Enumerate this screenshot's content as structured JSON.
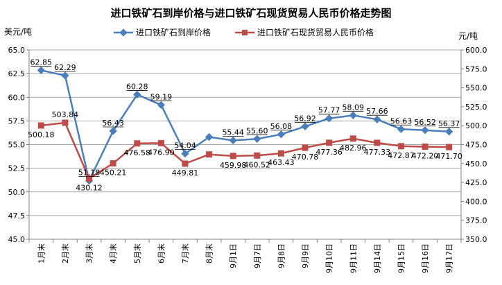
{
  "chart_data": {
    "type": "line",
    "title": "进口铁矿石到岸价格与进口铁矿石现货贸易人民币价格走势图",
    "left_unit": "美元/吨",
    "right_unit": "元/吨",
    "categories": [
      "1月末",
      "2月末",
      "3月末",
      "4月末",
      "5月末",
      "6月末",
      "7月末",
      "8月末",
      "9月1日",
      "9月7日",
      "9月8日",
      "9月9日",
      "9月10日",
      "9月11日",
      "9月14日",
      "9月15日",
      "9月16日",
      "9月17日"
    ],
    "y_left": {
      "min": 45.0,
      "max": 65.0,
      "step": 2.5,
      "ticks": [
        "45.0",
        "47.5",
        "50.0",
        "52.5",
        "55.0",
        "57.5",
        "60.0",
        "62.5",
        "65.0"
      ]
    },
    "y_right": {
      "min": 350.0,
      "max": 600.0,
      "step": 25,
      "ticks": [
        "350.0",
        "375.0",
        "400.0",
        "425.0",
        "450.0",
        "475.0",
        "500.0",
        "525.0",
        "550.0",
        "575.0",
        "600.0"
      ]
    },
    "series": [
      {
        "name": "进口铁矿石到岸价格",
        "axis": "left",
        "color": "#4a7ebb",
        "marker": "diamond",
        "values": [
          62.85,
          62.29,
          51.18,
          56.43,
          60.28,
          59.19,
          54.04,
          55.8,
          55.44,
          55.6,
          56.08,
          56.92,
          57.77,
          58.09,
          57.66,
          56.63,
          56.52,
          56.37
        ],
        "labels": [
          "62.85",
          "62.29",
          "51.18",
          "56.43",
          "60.28",
          "59.19",
          "54.04",
          "",
          "55.44",
          "55.60",
          "56.08",
          "56.92",
          "57.77",
          "58.09",
          "57.66",
          "56.63",
          "56.52",
          "56.37"
        ]
      },
      {
        "name": "进口铁矿石现货贸易人民币价格",
        "axis": "right",
        "color": "#be4b48",
        "marker": "square",
        "values": [
          500.18,
          503.84,
          430.12,
          450.21,
          476.58,
          476.9,
          449.81,
          462.0,
          459.98,
          460.52,
          463.43,
          470.78,
          477.36,
          482.96,
          477.33,
          472.87,
          472.2,
          471.7
        ],
        "labels": [
          "500.18",
          "503.84",
          "430.12",
          "450.21",
          "476.58",
          "476.90",
          "449.81",
          "",
          "459.98",
          "460.52",
          "463.43",
          "470.78",
          "477.36",
          "482.96",
          "477.33",
          "472.87",
          "472.20",
          "471.70"
        ]
      }
    ],
    "grid": true,
    "legend": "top-center"
  }
}
